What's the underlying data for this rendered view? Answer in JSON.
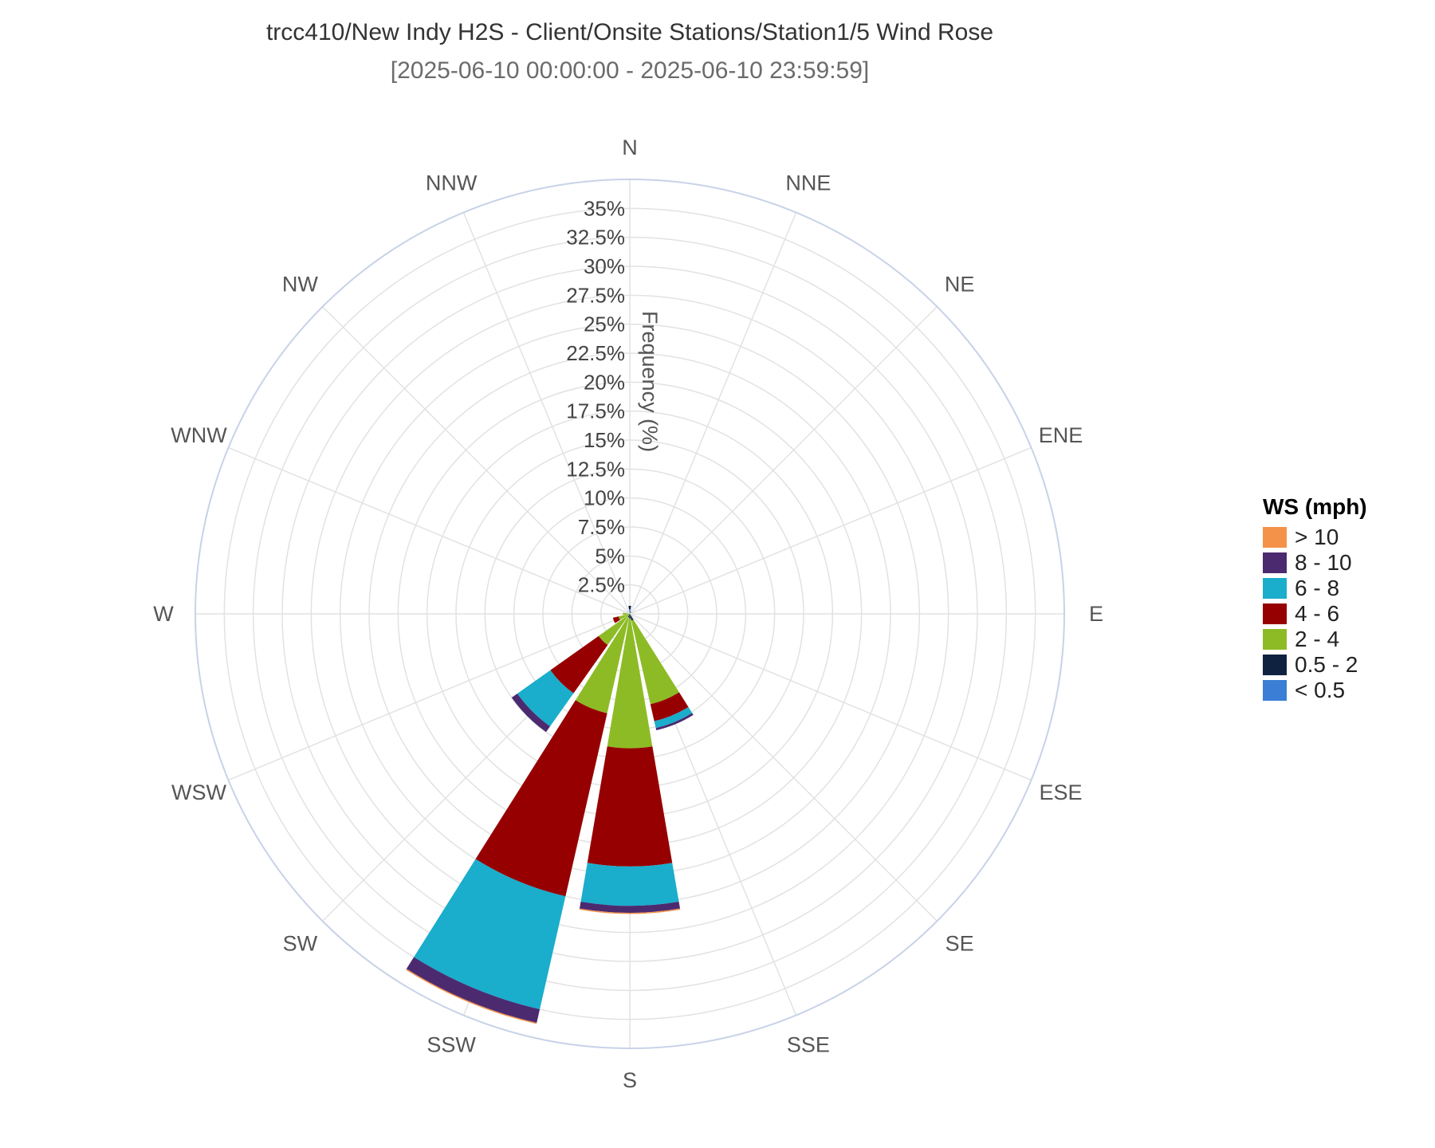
{
  "chart_data": {
    "type": "windrose",
    "title": "trcc410/New Indy H2S - Client/Onsite Stations/Station1/5 Wind Rose",
    "subtitle": "[2025-06-10 00:00:00 - 2025-06-10 23:59:59]",
    "radial_axis_label": "Frequency (%)",
    "radial_ticks": [
      "2.5%",
      "5%",
      "7.5%",
      "10%",
      "12.5%",
      "15%",
      "17.5%",
      "20%",
      "22.5%",
      "25%",
      "27.5%",
      "30%",
      "32.5%",
      "35%"
    ],
    "radial_range": [
      0,
      37.5
    ],
    "directions": [
      "N",
      "NNE",
      "NE",
      "ENE",
      "E",
      "ESE",
      "SE",
      "SSE",
      "S",
      "SSW",
      "SW",
      "WSW",
      "W",
      "WNW",
      "NW",
      "NNW"
    ],
    "legend_title": "WS (mph)",
    "series": [
      {
        "name": "< 0.5",
        "color": "#3a7fd5",
        "values": [
          0.4,
          0.1,
          0,
          0,
          0,
          0,
          0,
          0,
          0,
          0,
          0,
          0,
          0,
          0,
          0,
          0
        ]
      },
      {
        "name": "0.5 - 2",
        "color": "#0f2340",
        "values": [
          0.3,
          0.1,
          0,
          0,
          0,
          0,
          0,
          0.6,
          0.4,
          0.3,
          0.1,
          0.1,
          0,
          0,
          0,
          0
        ]
      },
      {
        "name": "2 - 4",
        "color": "#8dbb25",
        "values": [
          0,
          0,
          0,
          0,
          0,
          0,
          0,
          7.4,
          11.2,
          8.5,
          3.2,
          0.9,
          0.6,
          0,
          0,
          0
        ]
      },
      {
        "name": "4 - 6",
        "color": "#960000",
        "values": [
          0,
          0,
          0,
          0,
          0,
          0,
          0,
          1.5,
          10.2,
          16.2,
          5.1,
          0.5,
          0,
          0,
          0,
          0
        ]
      },
      {
        "name": "6 - 8",
        "color": "#1aadcc",
        "values": [
          0,
          0,
          0,
          0,
          0,
          0,
          0,
          0.6,
          3.4,
          10.0,
          3.5,
          0,
          0,
          0,
          0,
          0
        ]
      },
      {
        "name": "8 - 10",
        "color": "#4b2a70",
        "values": [
          0,
          0,
          0,
          0,
          0,
          0,
          0,
          0.2,
          0.6,
          1.2,
          0.6,
          0,
          0,
          0,
          0,
          0
        ]
      },
      {
        "name": "> 10",
        "color": "#f5924a",
        "values": [
          0,
          0,
          0,
          0,
          0,
          0,
          0,
          0,
          0.1,
          0.1,
          0,
          0,
          0,
          0,
          0,
          0
        ]
      }
    ]
  }
}
